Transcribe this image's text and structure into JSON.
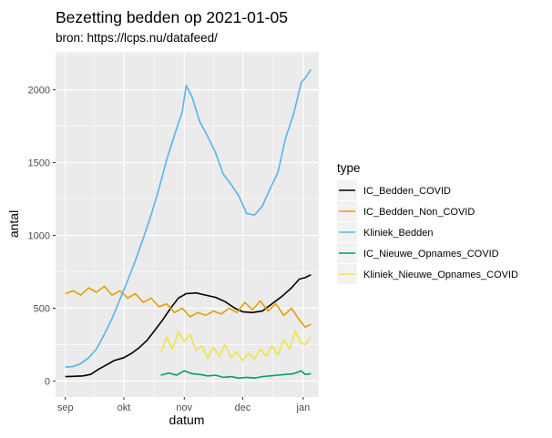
{
  "chart_data": {
    "type": "line",
    "title": "Bezetting bedden op 2021-01-05",
    "subtitle": "bron: https://lcps.nu/datafeed/",
    "xlabel": "datum",
    "ylabel": "antal",
    "x_ticks": [
      "sep",
      "okt",
      "nov",
      "dec",
      "jan"
    ],
    "x_tick_dates": [
      "2020-09-01",
      "2020-10-01",
      "2020-11-01",
      "2020-12-01",
      "2021-01-01"
    ],
    "xlim": [
      "2020-08-27",
      "2021-01-09"
    ],
    "y_ticks": [
      0,
      500,
      1000,
      1500,
      2000
    ],
    "ylim": [
      -110,
      2260
    ],
    "grid": true,
    "legend_title": "type",
    "legend_position": "right",
    "series": [
      {
        "name": "IC_Bedden_COVID",
        "color": "#000000",
        "points": [
          [
            "2020-09-01",
            30
          ],
          [
            "2020-09-05",
            32
          ],
          [
            "2020-09-10",
            35
          ],
          [
            "2020-09-14",
            45
          ],
          [
            "2020-09-18",
            80
          ],
          [
            "2020-09-22",
            110
          ],
          [
            "2020-09-26",
            140
          ],
          [
            "2020-10-01",
            160
          ],
          [
            "2020-10-05",
            190
          ],
          [
            "2020-10-09",
            230
          ],
          [
            "2020-10-13",
            280
          ],
          [
            "2020-10-17",
            350
          ],
          [
            "2020-10-21",
            420
          ],
          [
            "2020-10-25",
            500
          ],
          [
            "2020-10-29",
            570
          ],
          [
            "2020-11-02",
            600
          ],
          [
            "2020-11-07",
            605
          ],
          [
            "2020-11-12",
            590
          ],
          [
            "2020-11-17",
            575
          ],
          [
            "2020-11-22",
            545
          ],
          [
            "2020-11-27",
            500
          ],
          [
            "2020-12-01",
            475
          ],
          [
            "2020-12-06",
            470
          ],
          [
            "2020-12-11",
            480
          ],
          [
            "2020-12-16",
            530
          ],
          [
            "2020-12-21",
            580
          ],
          [
            "2020-12-26",
            640
          ],
          [
            "2020-12-30",
            700
          ],
          [
            "2021-01-02",
            710
          ],
          [
            "2021-01-05",
            730
          ]
        ]
      },
      {
        "name": "IC_Bedden_Non_COVID",
        "color": "#E69F00",
        "points": [
          [
            "2020-09-01",
            600
          ],
          [
            "2020-09-05",
            620
          ],
          [
            "2020-09-09",
            590
          ],
          [
            "2020-09-13",
            640
          ],
          [
            "2020-09-17",
            610
          ],
          [
            "2020-09-21",
            650
          ],
          [
            "2020-09-25",
            590
          ],
          [
            "2020-09-29",
            620
          ],
          [
            "2020-10-03",
            570
          ],
          [
            "2020-10-07",
            600
          ],
          [
            "2020-10-11",
            540
          ],
          [
            "2020-10-15",
            570
          ],
          [
            "2020-10-19",
            510
          ],
          [
            "2020-10-23",
            530
          ],
          [
            "2020-10-27",
            470
          ],
          [
            "2020-10-31",
            500
          ],
          [
            "2020-11-04",
            440
          ],
          [
            "2020-11-08",
            470
          ],
          [
            "2020-11-12",
            450
          ],
          [
            "2020-11-16",
            480
          ],
          [
            "2020-11-20",
            460
          ],
          [
            "2020-11-24",
            500
          ],
          [
            "2020-11-28",
            470
          ],
          [
            "2020-12-02",
            540
          ],
          [
            "2020-12-06",
            490
          ],
          [
            "2020-12-10",
            550
          ],
          [
            "2020-12-14",
            480
          ],
          [
            "2020-12-18",
            530
          ],
          [
            "2020-12-22",
            450
          ],
          [
            "2020-12-26",
            500
          ],
          [
            "2020-12-30",
            420
          ],
          [
            "2021-01-02",
            370
          ],
          [
            "2021-01-05",
            390
          ]
        ]
      },
      {
        "name": "Kliniek_Bedden",
        "color": "#56B4E9",
        "points": [
          [
            "2020-09-01",
            95
          ],
          [
            "2020-09-05",
            100
          ],
          [
            "2020-09-09",
            120
          ],
          [
            "2020-09-13",
            160
          ],
          [
            "2020-09-17",
            220
          ],
          [
            "2020-09-21",
            320
          ],
          [
            "2020-09-25",
            430
          ],
          [
            "2020-09-29",
            560
          ],
          [
            "2020-10-03",
            690
          ],
          [
            "2020-10-07",
            830
          ],
          [
            "2020-10-11",
            980
          ],
          [
            "2020-10-15",
            1140
          ],
          [
            "2020-10-19",
            1320
          ],
          [
            "2020-10-23",
            1520
          ],
          [
            "2020-10-27",
            1690
          ],
          [
            "2020-10-31",
            1850
          ],
          [
            "2020-11-02",
            2030
          ],
          [
            "2020-11-05",
            1950
          ],
          [
            "2020-11-09",
            1780
          ],
          [
            "2020-11-13",
            1680
          ],
          [
            "2020-11-17",
            1570
          ],
          [
            "2020-11-21",
            1420
          ],
          [
            "2020-11-25",
            1350
          ],
          [
            "2020-11-29",
            1270
          ],
          [
            "2020-12-03",
            1150
          ],
          [
            "2020-12-07",
            1140
          ],
          [
            "2020-12-11",
            1200
          ],
          [
            "2020-12-15",
            1320
          ],
          [
            "2020-12-19",
            1430
          ],
          [
            "2020-12-23",
            1670
          ],
          [
            "2020-12-27",
            1830
          ],
          [
            "2020-12-31",
            2050
          ],
          [
            "2021-01-02",
            2080
          ],
          [
            "2021-01-05",
            2140
          ]
        ]
      },
      {
        "name": "IC_Nieuwe_Opnames_COVID",
        "color": "#009E73",
        "points": [
          [
            "2020-10-20",
            40
          ],
          [
            "2020-10-24",
            55
          ],
          [
            "2020-10-28",
            40
          ],
          [
            "2020-11-01",
            70
          ],
          [
            "2020-11-05",
            50
          ],
          [
            "2020-11-09",
            45
          ],
          [
            "2020-11-13",
            35
          ],
          [
            "2020-11-17",
            40
          ],
          [
            "2020-11-21",
            25
          ],
          [
            "2020-11-25",
            30
          ],
          [
            "2020-11-29",
            20
          ],
          [
            "2020-12-03",
            25
          ],
          [
            "2020-12-07",
            20
          ],
          [
            "2020-12-11",
            30
          ],
          [
            "2020-12-15",
            35
          ],
          [
            "2020-12-19",
            40
          ],
          [
            "2020-12-23",
            45
          ],
          [
            "2020-12-27",
            50
          ],
          [
            "2020-12-31",
            70
          ],
          [
            "2021-01-02",
            45
          ],
          [
            "2021-01-05",
            50
          ]
        ]
      },
      {
        "name": "Kliniek_Nieuwe_Opnames_COVID",
        "color": "#F0E442",
        "points": [
          [
            "2020-10-20",
            200
          ],
          [
            "2020-10-23",
            300
          ],
          [
            "2020-10-26",
            220
          ],
          [
            "2020-10-29",
            340
          ],
          [
            "2020-11-01",
            270
          ],
          [
            "2020-11-04",
            320
          ],
          [
            "2020-11-07",
            210
          ],
          [
            "2020-11-10",
            240
          ],
          [
            "2020-11-13",
            160
          ],
          [
            "2020-11-16",
            230
          ],
          [
            "2020-11-19",
            170
          ],
          [
            "2020-11-22",
            250
          ],
          [
            "2020-11-25",
            160
          ],
          [
            "2020-11-28",
            200
          ],
          [
            "2020-12-01",
            140
          ],
          [
            "2020-12-04",
            190
          ],
          [
            "2020-12-07",
            150
          ],
          [
            "2020-12-10",
            220
          ],
          [
            "2020-12-13",
            170
          ],
          [
            "2020-12-16",
            240
          ],
          [
            "2020-12-19",
            180
          ],
          [
            "2020-12-22",
            280
          ],
          [
            "2020-12-25",
            220
          ],
          [
            "2020-12-28",
            340
          ],
          [
            "2020-12-31",
            260
          ],
          [
            "2021-01-02",
            250
          ],
          [
            "2021-01-05",
            300
          ]
        ]
      }
    ]
  }
}
